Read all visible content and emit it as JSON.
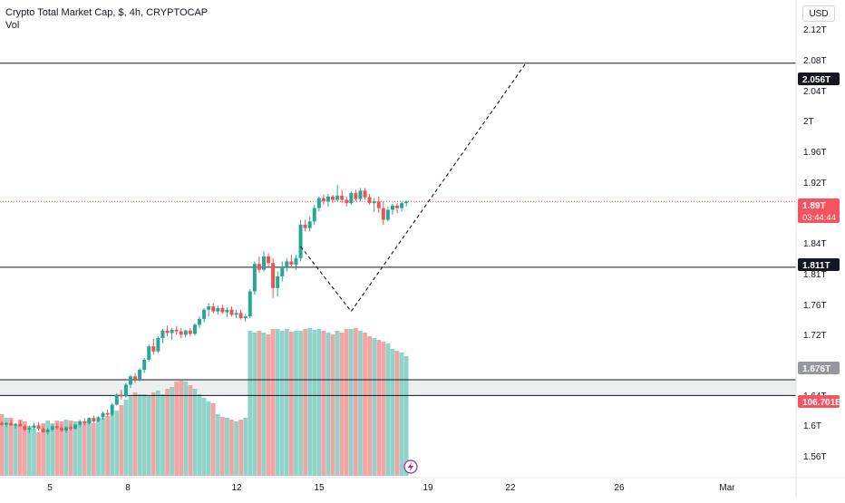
{
  "header": {
    "title": "Crypto Total Market Cap, $, 4h, CRYPTOCAP",
    "volume_label": "Vol"
  },
  "currency_button": "USD",
  "chart_data": {
    "type": "candlestick",
    "title": "Crypto Total Market Cap, $, 4h, CRYPTOCAP",
    "y_ticks": [
      "2.12T",
      "2.08T",
      "2.04T",
      "2T",
      "1.96T",
      "1.92T",
      "1.84T",
      "1.81T",
      "1.76T",
      "1.72T",
      "1.64T",
      "1.6T",
      "1.56T"
    ],
    "x_ticks": [
      "5",
      "8",
      "12",
      "15",
      "19",
      "22",
      "26",
      "Mar"
    ],
    "price_labels": {
      "target": "2.056T",
      "current": "1.89T",
      "countdown": "03:44:44",
      "support": "1.811T",
      "zone": "1.676T",
      "volume": "106.701B"
    },
    "horizontal_lines": [
      {
        "name": "target-line",
        "value": 2.056
      },
      {
        "name": "support-line",
        "value": 1.811
      },
      {
        "name": "zone-top-line",
        "value": 1.676
      },
      {
        "name": "zone-bottom-line",
        "value": 1.657
      }
    ],
    "projection_path": [
      {
        "bar": 65,
        "value": 1.836
      },
      {
        "bar": 76,
        "value": 1.758
      },
      {
        "bar": 114,
        "value": 2.056
      }
    ],
    "ohlc": [
      [
        1.624,
        1.626,
        1.62,
        1.622
      ],
      [
        1.622,
        1.625,
        1.619,
        1.624
      ],
      [
        1.624,
        1.628,
        1.621,
        1.621
      ],
      [
        1.621,
        1.624,
        1.617,
        1.623
      ],
      [
        1.623,
        1.627,
        1.62,
        1.62
      ],
      [
        1.62,
        1.622,
        1.614,
        1.616
      ],
      [
        1.616,
        1.621,
        1.612,
        1.618
      ],
      [
        1.618,
        1.624,
        1.616,
        1.621
      ],
      [
        1.621,
        1.625,
        1.615,
        1.617
      ],
      [
        1.617,
        1.62,
        1.612,
        1.613
      ],
      [
        1.613,
        1.618,
        1.61,
        1.616
      ],
      [
        1.616,
        1.622,
        1.614,
        1.62
      ],
      [
        1.62,
        1.624,
        1.616,
        1.618
      ],
      [
        1.618,
        1.622,
        1.613,
        1.615
      ],
      [
        1.615,
        1.62,
        1.612,
        1.619
      ],
      [
        1.619,
        1.623,
        1.615,
        1.617
      ],
      [
        1.617,
        1.623,
        1.616,
        1.622
      ],
      [
        1.622,
        1.628,
        1.619,
        1.626
      ],
      [
        1.626,
        1.63,
        1.621,
        1.624
      ],
      [
        1.624,
        1.631,
        1.622,
        1.63
      ],
      [
        1.63,
        1.633,
        1.624,
        1.626
      ],
      [
        1.626,
        1.632,
        1.625,
        1.631
      ],
      [
        1.631,
        1.638,
        1.628,
        1.636
      ],
      [
        1.636,
        1.64,
        1.632,
        1.634
      ],
      [
        1.634,
        1.648,
        1.632,
        1.646
      ],
      [
        1.646,
        1.66,
        1.645,
        1.658
      ],
      [
        1.658,
        1.664,
        1.652,
        1.656
      ],
      [
        1.656,
        1.672,
        1.654,
        1.67
      ],
      [
        1.67,
        1.682,
        1.666,
        1.68
      ],
      [
        1.68,
        1.684,
        1.672,
        1.676
      ],
      [
        1.676,
        1.69,
        1.674,
        1.688
      ],
      [
        1.688,
        1.702,
        1.684,
        1.7
      ],
      [
        1.7,
        1.718,
        1.698,
        1.716
      ],
      [
        1.716,
        1.725,
        1.706,
        1.71
      ],
      [
        1.71,
        1.728,
        1.708,
        1.726
      ],
      [
        1.726,
        1.737,
        1.72,
        1.735
      ],
      [
        1.735,
        1.741,
        1.728,
        1.732
      ],
      [
        1.732,
        1.738,
        1.724,
        1.736
      ],
      [
        1.736,
        1.74,
        1.73,
        1.734
      ],
      [
        1.734,
        1.738,
        1.726,
        1.73
      ],
      [
        1.73,
        1.736,
        1.727,
        1.735
      ],
      [
        1.735,
        1.738,
        1.728,
        1.731
      ],
      [
        1.731,
        1.744,
        1.729,
        1.742
      ],
      [
        1.742,
        1.752,
        1.738,
        1.749
      ],
      [
        1.749,
        1.762,
        1.745,
        1.76
      ],
      [
        1.76,
        1.768,
        1.752,
        1.764
      ],
      [
        1.764,
        1.768,
        1.756,
        1.758
      ],
      [
        1.758,
        1.765,
        1.754,
        1.762
      ],
      [
        1.762,
        1.766,
        1.755,
        1.757
      ],
      [
        1.757,
        1.763,
        1.751,
        1.76
      ],
      [
        1.76,
        1.764,
        1.752,
        1.754
      ],
      [
        1.754,
        1.76,
        1.75,
        1.756
      ],
      [
        1.756,
        1.76,
        1.748,
        1.75
      ],
      [
        1.75,
        1.755,
        1.746,
        1.752
      ],
      [
        1.752,
        1.785,
        1.75,
        1.782
      ],
      [
        1.782,
        1.818,
        1.778,
        1.815
      ],
      [
        1.815,
        1.824,
        1.804,
        1.808
      ],
      [
        1.808,
        1.83,
        1.806,
        1.824
      ],
      [
        1.824,
        1.828,
        1.812,
        1.816
      ],
      [
        1.816,
        1.822,
        1.774,
        1.786
      ],
      [
        1.786,
        1.806,
        1.776,
        1.8
      ],
      [
        1.8,
        1.818,
        1.794,
        1.81
      ],
      [
        1.81,
        1.822,
        1.806,
        1.818
      ],
      [
        1.818,
        1.826,
        1.81,
        1.814
      ],
      [
        1.814,
        1.826,
        1.808,
        1.822
      ],
      [
        1.822,
        1.868,
        1.818,
        1.862
      ],
      [
        1.862,
        1.868,
        1.854,
        1.858
      ],
      [
        1.858,
        1.872,
        1.854,
        1.866
      ],
      [
        1.866,
        1.886,
        1.862,
        1.882
      ],
      [
        1.882,
        1.896,
        1.878,
        1.894
      ],
      [
        1.894,
        1.898,
        1.886,
        1.89
      ],
      [
        1.89,
        1.899,
        1.884,
        1.896
      ],
      [
        1.896,
        1.898,
        1.888,
        1.892
      ],
      [
        1.892,
        1.91,
        1.89,
        1.897
      ],
      [
        1.897,
        1.904,
        1.888,
        1.892
      ],
      [
        1.892,
        1.896,
        1.884,
        1.888
      ],
      [
        1.888,
        1.902,
        1.886,
        1.9
      ],
      [
        1.9,
        1.904,
        1.89,
        1.893
      ],
      [
        1.893,
        1.906,
        1.89,
        1.903
      ],
      [
        1.903,
        1.906,
        1.892,
        1.895
      ],
      [
        1.895,
        1.899,
        1.886,
        1.888
      ],
      [
        1.888,
        1.894,
        1.878,
        1.89
      ],
      [
        1.89,
        1.896,
        1.876,
        1.882
      ],
      [
        1.882,
        1.89,
        1.862,
        1.868
      ],
      [
        1.868,
        1.884,
        1.866,
        1.88
      ],
      [
        1.88,
        1.887,
        1.874,
        1.885
      ],
      [
        1.885,
        1.888,
        1.876,
        1.882
      ],
      [
        1.882,
        1.89,
        1.878,
        1.888
      ],
      [
        1.888,
        1.891,
        1.884,
        1.89
      ]
    ],
    "volumes": [
      68,
      64,
      64,
      56,
      62,
      60,
      55,
      52,
      48,
      58,
      61,
      58,
      61,
      60,
      62,
      61,
      60,
      57,
      60,
      62,
      58,
      60,
      64,
      66,
      68,
      72,
      78,
      84,
      88,
      92,
      90,
      90,
      88,
      92,
      94,
      90,
      96,
      98,
      104,
      105,
      104,
      100,
      96,
      90,
      86,
      82,
      80,
      68,
      65,
      64,
      62,
      60,
      62,
      64,
      160,
      158,
      160,
      158,
      156,
      162,
      162,
      160,
      162,
      159,
      160,
      160,
      162,
      163,
      161,
      162,
      160,
      158,
      156,
      160,
      158,
      162,
      162,
      163,
      160,
      158,
      154,
      152,
      150,
      148,
      146,
      140,
      138,
      136,
      132
    ]
  }
}
